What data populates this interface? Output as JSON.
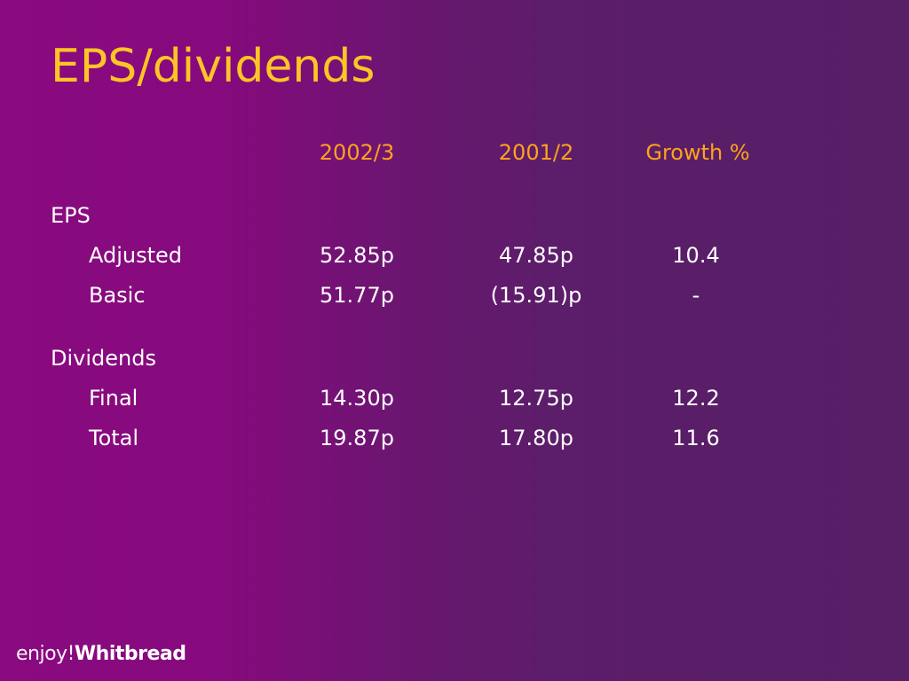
{
  "title": "EPS/dividends",
  "columns": [
    "2002/3",
    "2001/2",
    "Growth %"
  ],
  "sections": [
    {
      "label": "EPS",
      "rows": [
        {
          "label": "Adjusted",
          "values": [
            "52.85p",
            "47.85p",
            "10.4"
          ]
        },
        {
          "label": "Basic",
          "values": [
            "51.77p",
            "(15.91)p",
            "-"
          ]
        }
      ]
    },
    {
      "label": "Dividends",
      "rows": [
        {
          "label": "Final",
          "values": [
            "14.30p",
            "12.75p",
            "12.2"
          ]
        },
        {
          "label": "Total",
          "values": [
            "19.87p",
            "17.80p",
            "11.6"
          ]
        }
      ]
    }
  ],
  "logo": {
    "prefix": "enjoy!",
    "brand": "Whitbread"
  },
  "colors": {
    "title": "#ffc425",
    "header": "#ffa31a",
    "text": "#ffffff",
    "bg_left": "#8a0a80",
    "bg_right": "#561f66"
  }
}
